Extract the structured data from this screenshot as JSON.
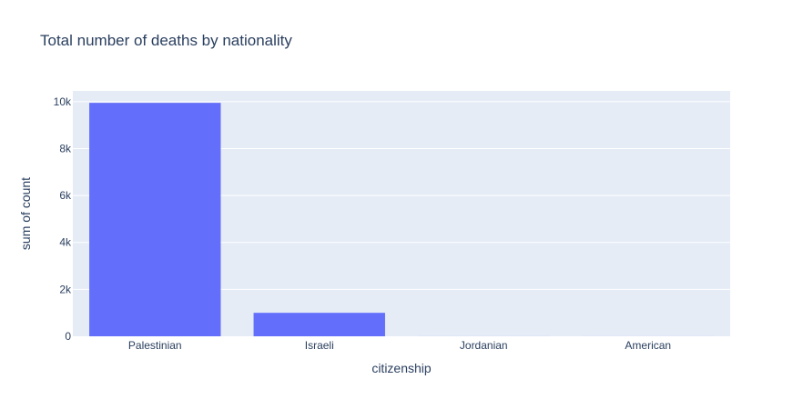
{
  "chart_data": {
    "type": "bar",
    "title": "Total number of deaths by nationality",
    "xlabel": "citizenship",
    "ylabel": "sum of count",
    "categories": [
      "Palestinian",
      "Israeli",
      "Jordanian",
      "American"
    ],
    "values": [
      9950,
      1000,
      2,
      1
    ],
    "ylim": [
      0,
      10460
    ],
    "yticks": [
      0,
      2000,
      4000,
      6000,
      8000,
      10000
    ],
    "ytick_labels": [
      "0",
      "2k",
      "4k",
      "6k",
      "8k",
      "10k"
    ],
    "grid": true,
    "colors": {
      "bar": "#636efa",
      "plot_bg": "#e5ecf6",
      "grid": "#ffffff",
      "text": "#2a3f5f"
    }
  }
}
